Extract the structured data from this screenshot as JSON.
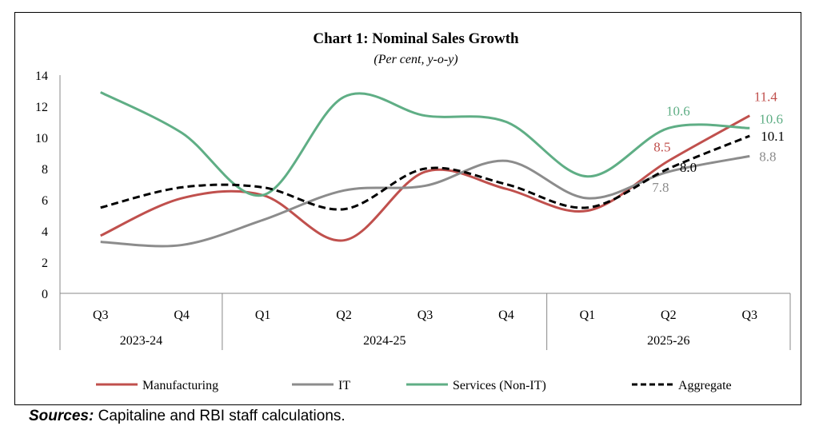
{
  "chart_data": {
    "type": "line",
    "title": "Chart 1: Nominal Sales Growth",
    "subtitle": "(Per cent, y-o-y)",
    "categories": [
      "Q3",
      "Q4",
      "Q1",
      "Q2",
      "Q3",
      "Q4",
      "Q1",
      "Q2",
      "Q3"
    ],
    "groups": [
      {
        "label": "2023-24",
        "span": 2
      },
      {
        "label": "2024-25",
        "span": 4
      },
      {
        "label": "2025-26",
        "span": 3
      }
    ],
    "ylim": [
      0,
      14
    ],
    "yticks": [
      0,
      2,
      4,
      6,
      8,
      10,
      12,
      14
    ],
    "grid": false,
    "legend_position": "bottom",
    "series": [
      {
        "name": "Manufacturing",
        "color": "#c0504d",
        "dash": false,
        "values": [
          3.7,
          6.1,
          6.3,
          3.4,
          7.8,
          6.7,
          5.3,
          8.5,
          11.4
        ]
      },
      {
        "name": "IT",
        "color": "#8c8c8c",
        "dash": false,
        "values": [
          3.3,
          3.1,
          4.7,
          6.6,
          6.9,
          8.5,
          6.1,
          7.8,
          8.8
        ]
      },
      {
        "name": "Services (Non-IT)",
        "color": "#5fae85",
        "dash": false,
        "values": [
          12.9,
          10.3,
          6.3,
          12.6,
          11.4,
          11.0,
          7.5,
          10.6,
          10.6
        ]
      },
      {
        "name": "Aggregate",
        "color": "#000000",
        "dash": true,
        "values": [
          5.5,
          6.8,
          6.8,
          5.4,
          8.0,
          7.0,
          5.5,
          8.0,
          10.1
        ]
      }
    ],
    "data_labels": [
      {
        "series": 0,
        "index": 7,
        "text": "8.5"
      },
      {
        "series": 0,
        "index": 8,
        "text": "11.4"
      },
      {
        "series": 1,
        "index": 7,
        "text": "7.8"
      },
      {
        "series": 1,
        "index": 8,
        "text": "8.8"
      },
      {
        "series": 2,
        "index": 7,
        "text": "10.6"
      },
      {
        "series": 2,
        "index": 8,
        "text": "10.6"
      },
      {
        "series": 3,
        "index": 7,
        "text": "8.0"
      },
      {
        "series": 3,
        "index": 8,
        "text": "10.1"
      }
    ]
  },
  "sources": {
    "label": "Sources:",
    "text": " Capitaline and RBI staff calculations."
  }
}
